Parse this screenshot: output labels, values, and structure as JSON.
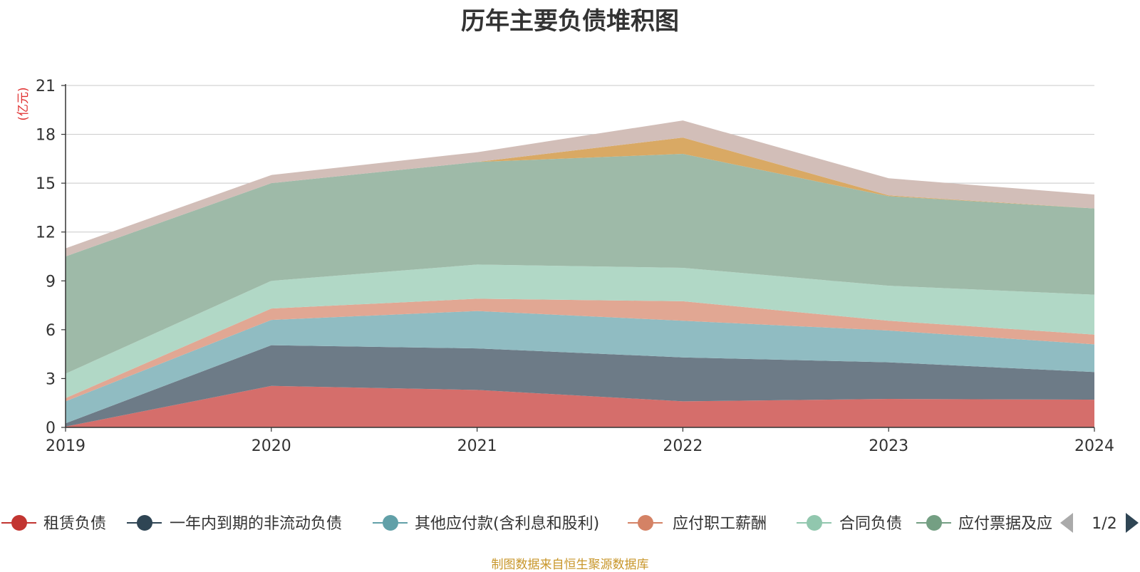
{
  "title": "历年主要负债堆积图",
  "source": "制图数据来自恒生聚源数据库",
  "colors": {
    "axis": "#333333",
    "grid": "#c8c8c8",
    "unit": "#e03030"
  },
  "chart_data": {
    "type": "area",
    "stacked": true,
    "title": "历年主要负债堆积图",
    "unit_label": "(亿元)",
    "x": [
      "2019",
      "2020",
      "2021",
      "2022",
      "2023",
      "2024"
    ],
    "ylim": [
      0,
      21
    ],
    "yticks": [
      0,
      3,
      6,
      9,
      12,
      15,
      18,
      21
    ],
    "grid": true,
    "legend_position": "bottom",
    "series": [
      {
        "name": "租赁负债",
        "color": "#c23531",
        "fill": "#d56e6b",
        "values": [
          0.05,
          2.55,
          2.3,
          1.6,
          1.75,
          1.7
        ]
      },
      {
        "name": "一年内到期的非流动负债",
        "color": "#2f4554",
        "fill": "#6d7b87",
        "values": [
          0.2,
          2.5,
          2.55,
          2.7,
          2.25,
          1.7
        ]
      },
      {
        "name": "其他应付款(含利息和股利)",
        "color": "#61a0a8",
        "fill": "#90bcc2",
        "values": [
          1.35,
          1.55,
          2.3,
          2.25,
          1.95,
          1.7
        ]
      },
      {
        "name": "应付职工薪酬",
        "color": "#d48265",
        "fill": "#e1a793",
        "values": [
          0.2,
          0.7,
          0.75,
          1.2,
          0.6,
          0.6
        ]
      },
      {
        "name": "合同负债",
        "color": "#91c7ae",
        "fill": "#b1d8c6",
        "values": [
          1.5,
          1.7,
          2.1,
          2.05,
          2.15,
          2.45
        ]
      },
      {
        "name": "应付票据及应付账款",
        "color": "#749f83",
        "fill": "#9ebaa8",
        "values": [
          7.2,
          6.0,
          6.3,
          7.0,
          5.5,
          5.3
        ]
      },
      {
        "name": "",
        "color": "#ca8622",
        "fill": "#d9a964",
        "values": [
          0.0,
          0.0,
          0.0,
          1.0,
          0.05,
          0.0
        ]
      },
      {
        "name": "",
        "color": "#bda29a",
        "fill": "#d2beb8",
        "values": [
          0.5,
          0.5,
          0.6,
          1.05,
          1.05,
          0.85
        ]
      }
    ],
    "legend_visible": [
      "租赁负债",
      "一年内到期的非流动负债",
      "其他应付款(含利息和股利)",
      "应付职工薪酬",
      "合同负债",
      "应付票据及应"
    ],
    "legend_page": "1/2"
  }
}
